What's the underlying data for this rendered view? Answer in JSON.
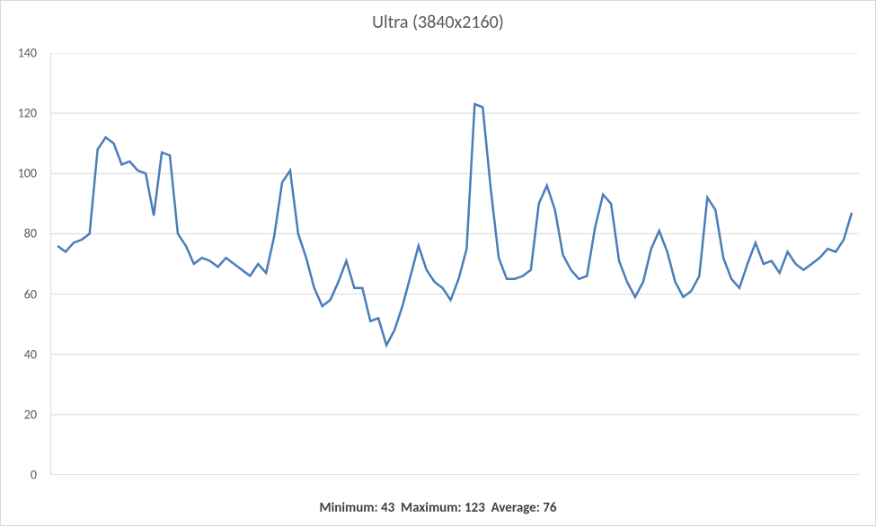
{
  "chart": {
    "type": "line",
    "title": "Ultra (3840x2160)",
    "title_fontsize": 20,
    "title_color": "#595959",
    "background_color": "#ffffff",
    "ylim": [
      0,
      140
    ],
    "ytick_step": 20,
    "yticks": [
      0,
      20,
      40,
      60,
      80,
      100,
      120,
      140
    ],
    "ytick_fontsize": 14,
    "ytick_color": "#595959",
    "grid_color": "#d9d9d9",
    "axis_line_color": "#bfbfbf",
    "line_color": "#4a7ebb",
    "line_width": 2.5,
    "values": [
      76,
      74,
      77,
      78,
      80,
      108,
      112,
      110,
      103,
      104,
      101,
      100,
      86,
      107,
      106,
      80,
      76,
      70,
      72,
      71,
      69,
      72,
      70,
      68,
      66,
      70,
      67,
      79,
      97,
      101,
      80,
      72,
      62,
      56,
      58,
      64,
      71,
      62,
      62,
      51,
      52,
      43,
      48,
      56,
      66,
      76,
      68,
      64,
      62,
      58,
      65,
      75,
      123,
      122,
      95,
      72,
      65,
      65,
      66,
      68,
      90,
      96,
      88,
      73,
      68,
      65,
      66,
      82,
      93,
      90,
      71,
      64,
      59,
      64,
      75,
      81,
      74,
      64,
      59,
      61,
      66,
      92,
      88,
      72,
      65,
      62,
      70,
      77,
      70,
      71,
      67,
      74,
      70,
      68,
      70,
      72,
      75,
      74,
      78,
      87
    ],
    "stats": {
      "min_label": "Minimum:",
      "min_value": 43,
      "max_label": "Maximum:",
      "max_value": 123,
      "avg_label": "Average:",
      "avg_value": 76,
      "fontsize": 15,
      "color": "#404040"
    }
  }
}
